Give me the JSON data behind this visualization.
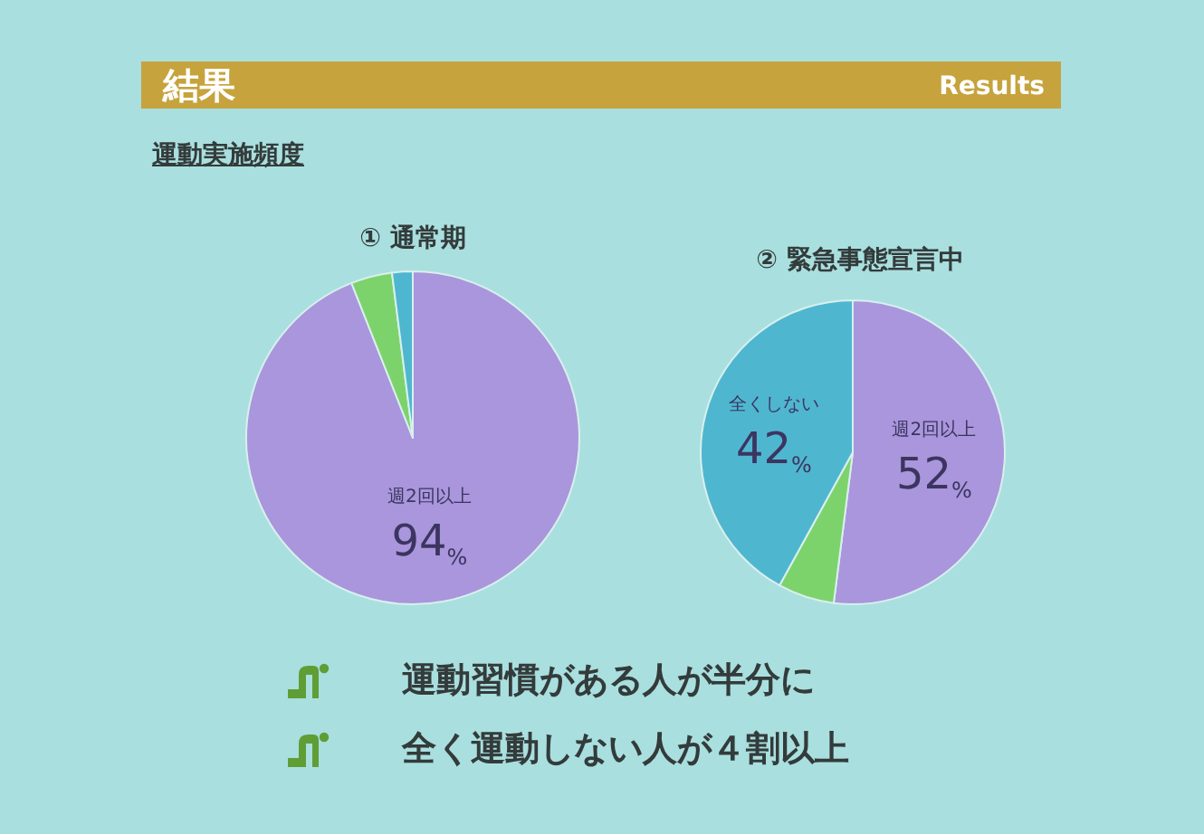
{
  "chart_data": [
    {
      "type": "other",
      "title": "結果",
      "subtitle": "運動実施頻度",
      "annotations": [
        "Results"
      ]
    },
    {
      "type": "pie",
      "title": "① 通常期",
      "categories": [
        "週2回以上",
        null,
        null
      ],
      "values": [
        94,
        4,
        2
      ],
      "colors": [
        "#a996dc",
        "#7dd36b",
        "#4fb6d0"
      ],
      "value_labels": [
        "94%",
        null,
        null
      ]
    },
    {
      "type": "pie",
      "title": "② 緊急事態宣言中",
      "categories": [
        "週2回以上",
        null,
        "全くしない"
      ],
      "values": [
        52,
        6,
        42
      ],
      "colors": [
        "#a996dc",
        "#7dd36b",
        "#4fb6d0"
      ],
      "value_labels": [
        "52%",
        null,
        "42%"
      ]
    },
    {
      "type": "other",
      "annotations": [
        "運動習慣がある人が半分に",
        "全く運動しない人が４割以上"
      ]
    }
  ]
}
